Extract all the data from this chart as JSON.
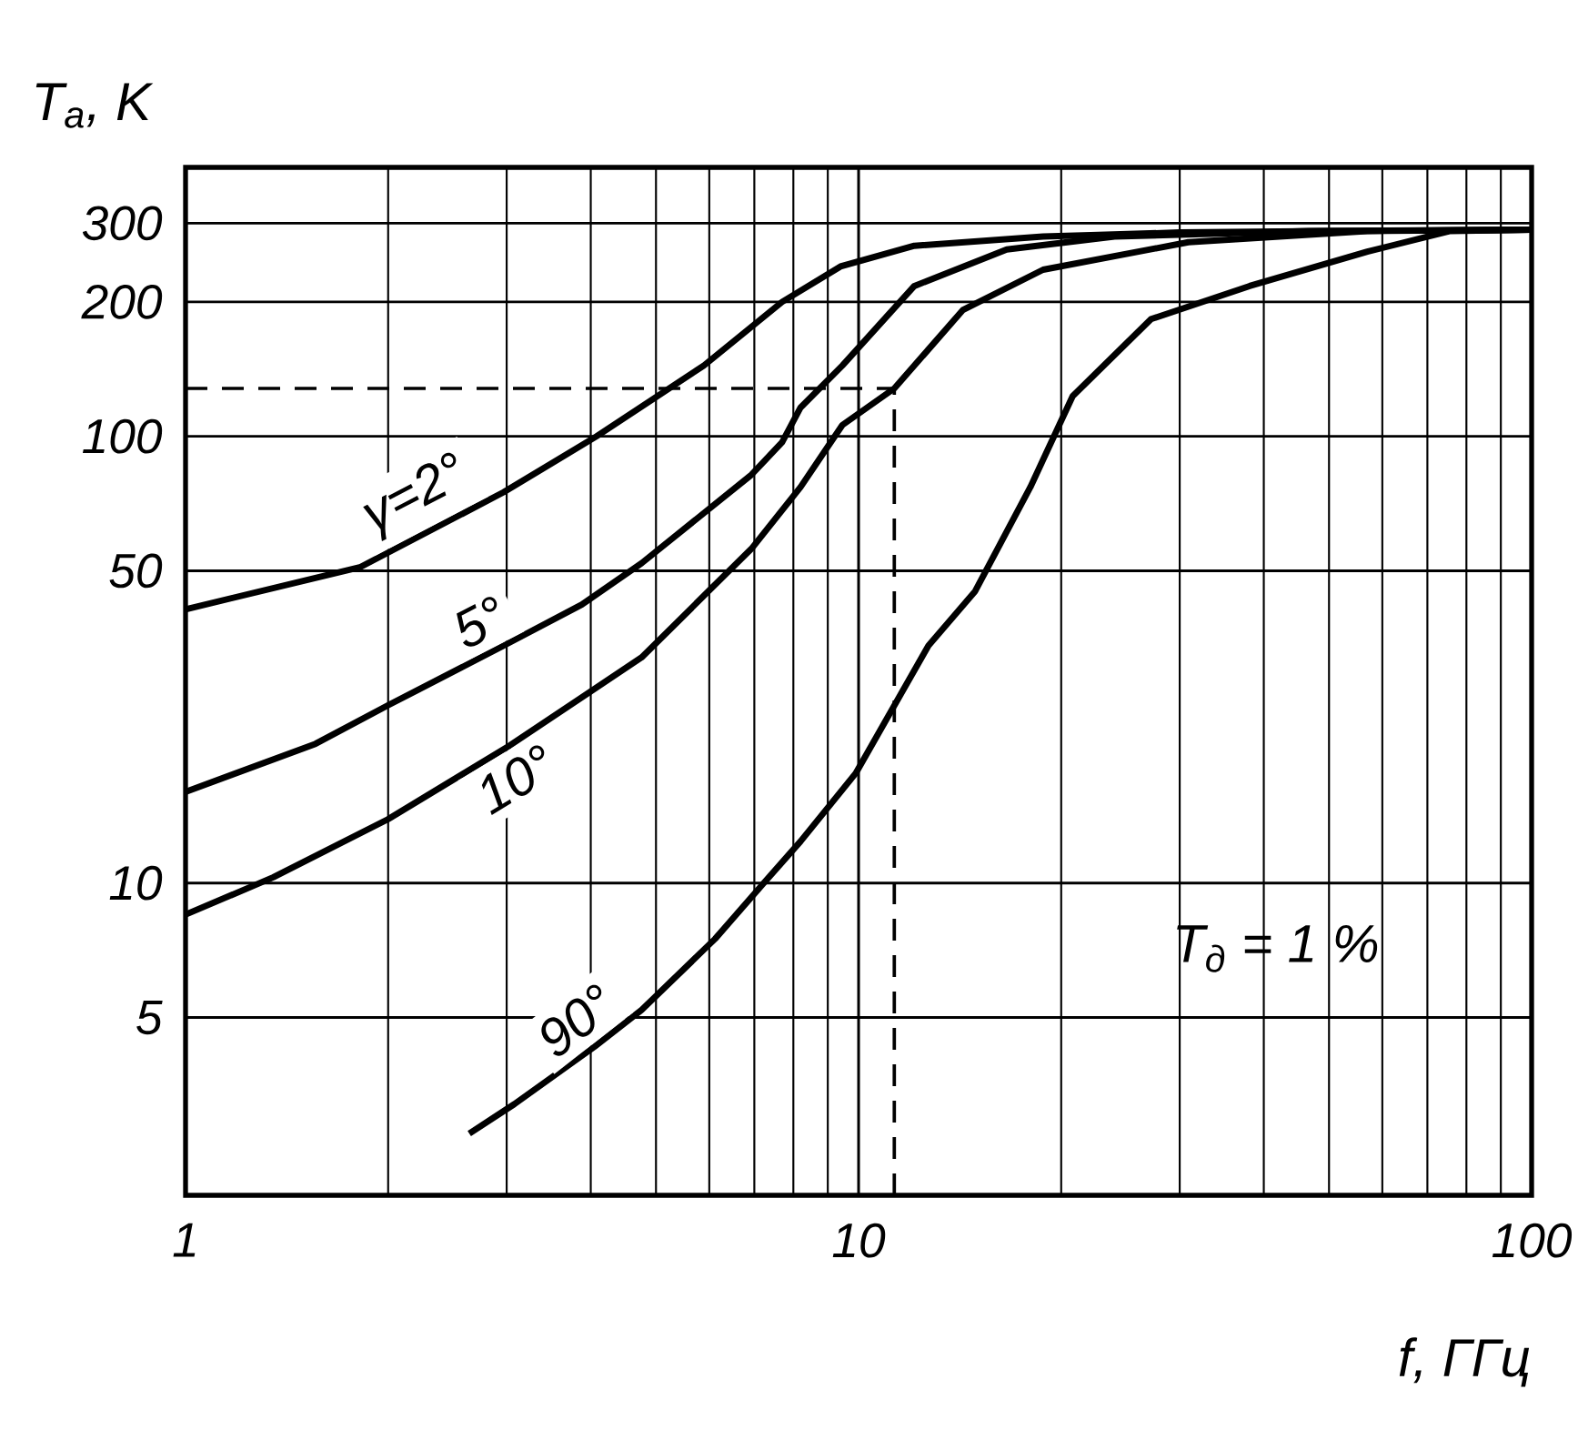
{
  "chart_data": {
    "type": "line",
    "xlabel": "f, ГГц",
    "ylabel": "T$_{а}$, K",
    "log": "xy",
    "grid": true,
    "legend": false,
    "marker": "none",
    "line_style": "solid",
    "xlim": [
      1,
      100
    ],
    "ylim": [
      2,
      400
    ],
    "xticks": [
      1,
      10,
      100
    ],
    "yticks": [
      5,
      10,
      50,
      100,
      200,
      300
    ],
    "series": [
      {
        "name": "γ=2°",
        "color": "#000000",
        "x": [
          1,
          1.82,
          2.97,
          4.08,
          5.89,
          7.7,
          9.4,
          12.1,
          18.8,
          30,
          50,
          100
        ],
        "values": [
          41,
          51,
          75,
          100,
          144,
          200,
          240,
          267,
          280,
          286,
          288,
          290
        ]
      },
      {
        "name": "5°",
        "color": "#000000",
        "x": [
          1,
          1.56,
          2.0,
          2.97,
          3.88,
          4.76,
          6.93,
          7.7,
          8.2,
          9.46,
          12.1,
          16.6,
          24,
          46.6,
          100
        ],
        "values": [
          16,
          20.5,
          25,
          34,
          42,
          52,
          82,
          97,
          116,
          144,
          217,
          262,
          280,
          288,
          290
        ]
      },
      {
        "name": "10°",
        "color": "#000000",
        "x": [
          1,
          1.35,
          2.0,
          3.03,
          4.76,
          6.93,
          8.2,
          9.46,
          11.3,
          14.3,
          18.8,
          30.9,
          57,
          100
        ],
        "values": [
          8.5,
          10.3,
          13.9,
          20.3,
          32,
          56,
          77,
          106,
          128,
          192,
          236,
          272,
          288,
          290
        ]
      },
      {
        "name": "90°",
        "color": "#000000",
        "x": [
          2.64,
          3.08,
          4.05,
          4.76,
          6.12,
          7.23,
          8.2,
          9.9,
          12.7,
          14.9,
          18,
          20.8,
          27.2,
          38.1,
          57,
          75.5,
          100
        ],
        "values": [
          2.75,
          3.2,
          4.3,
          5.2,
          7.5,
          10,
          12.4,
          17.6,
          34,
          45,
          77,
          123,
          183,
          217,
          259,
          288,
          290
        ]
      }
    ],
    "ref_lines": [
      {
        "axis": "y",
        "value": 128,
        "line_style": "dashed"
      },
      {
        "axis": "x",
        "value": 11.3,
        "line_style": "dashed"
      }
    ],
    "annotations": [
      "T$_{д}$ = 1 %"
    ]
  }
}
